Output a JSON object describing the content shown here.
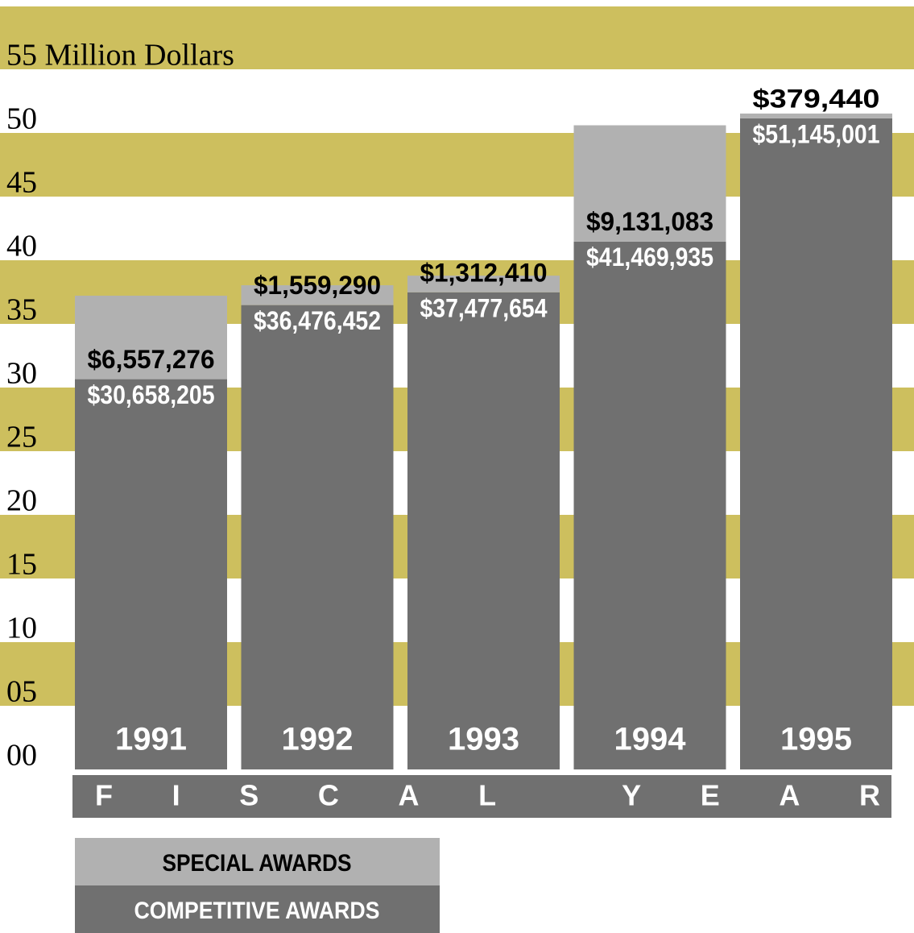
{
  "chart_data": {
    "type": "stacked_bar",
    "categories": [
      "1991",
      "1992",
      "1993",
      "1994",
      "1995"
    ],
    "x_label": "FISCAL YEAR",
    "series": [
      {
        "name": "COMPETITIVE AWARDS",
        "color": "#707070",
        "label_color": "#ffffff",
        "values": [
          30.658205,
          36.476452,
          37.477654,
          41.469935,
          51.145001
        ],
        "value_labels": [
          "$30,658,205",
          "$36,476,452",
          "$37,477,654",
          "$41,469,935",
          "$51,145,001"
        ]
      },
      {
        "name": "SPECIAL AWARDS",
        "color": "#b1b1b1",
        "label_color": "#000000",
        "values": [
          6.557276,
          1.55929,
          1.31241,
          9.131083,
          0.37944
        ],
        "value_labels": [
          "$6,557,276",
          "$1,559,290",
          "$1,312,410",
          "$9,131,083",
          "$379,440"
        ]
      }
    ],
    "ylim": [
      0,
      55
    ],
    "yticks": [
      {
        "value": 0,
        "label": "00"
      },
      {
        "value": 5,
        "label": "05"
      },
      10,
      15,
      20,
      25,
      30,
      35,
      40,
      45,
      50,
      {
        "value": 55,
        "label": "55 Million Dollars"
      }
    ],
    "band_color": "#cdbf5e",
    "legend": "bottom-left"
  }
}
